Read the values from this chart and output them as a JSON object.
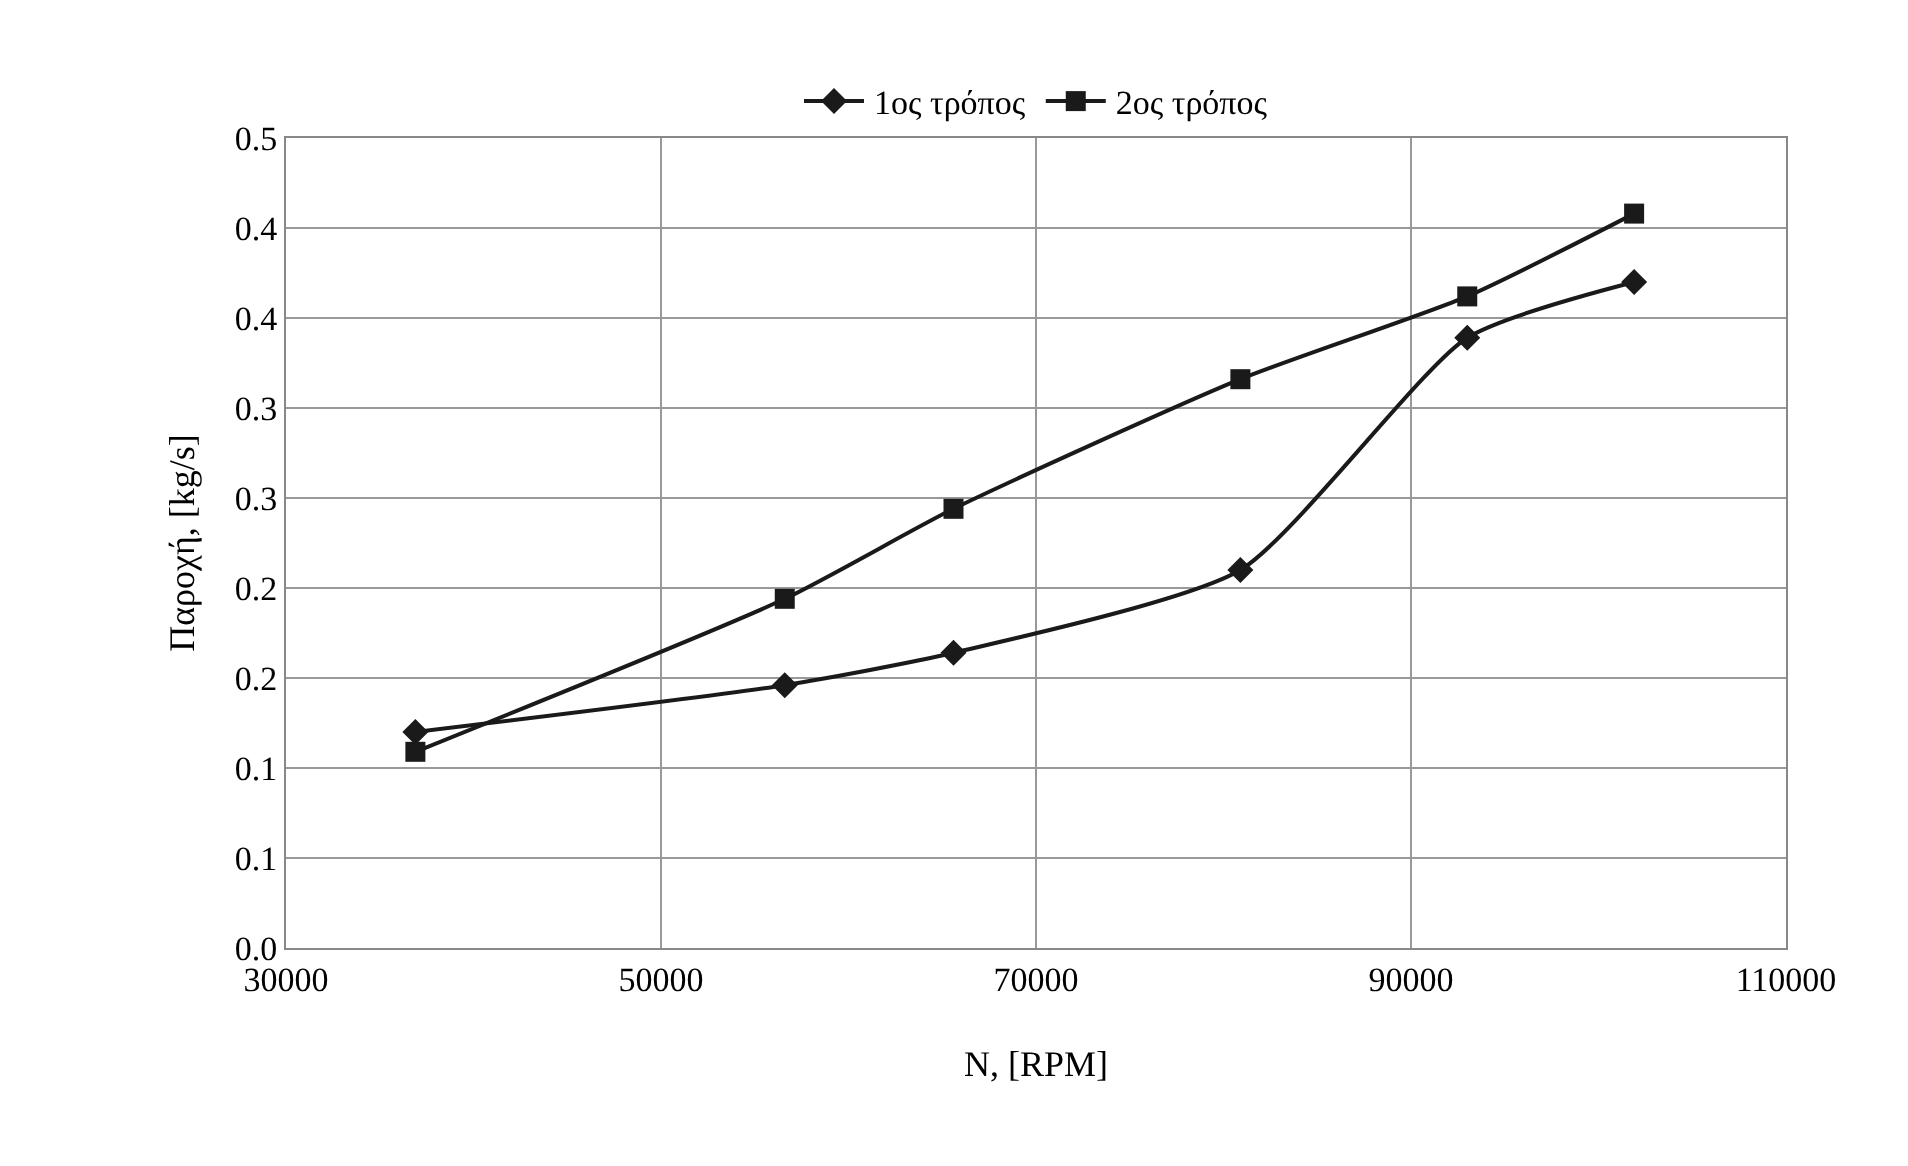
{
  "chart_data": {
    "type": "line",
    "xlabel": "N, [RPM]",
    "ylabel": "Παροχή, [kg/s]",
    "xlim": [
      30000,
      110000
    ],
    "xticks": [
      30000,
      50000,
      70000,
      90000,
      110000
    ],
    "ylim": [
      0,
      0.45
    ],
    "yticks": [
      {
        "value": 0,
        "label": "0.0"
      },
      {
        "value": 0.05,
        "label": "0.1"
      },
      {
        "value": 0.1,
        "label": "0.1"
      },
      {
        "value": 0.15,
        "label": "0.2"
      },
      {
        "value": 0.2,
        "label": "0.2"
      },
      {
        "value": 0.25,
        "label": "0.3"
      },
      {
        "value": 0.3,
        "label": "0.3"
      },
      {
        "value": 0.35,
        "label": "0.4"
      },
      {
        "value": 0.4,
        "label": "0.4"
      },
      {
        "value": 0.45,
        "label": "0.5"
      }
    ],
    "grid": true,
    "legend": "top",
    "line_style": "solid",
    "series": [
      {
        "name": "1ος τρόπος",
        "color": "#1a1a1a",
        "marker": "diamond",
        "x": [
          36900,
          56600,
          65600,
          80900,
          93000,
          101900
        ],
        "values": [
          0.12,
          0.146,
          0.164,
          0.21,
          0.339,
          0.37
        ]
      },
      {
        "name": "2ος τρόπος",
        "color": "#1a1a1a",
        "marker": "square",
        "x": [
          36900,
          56600,
          65600,
          80900,
          93000,
          101900
        ],
        "values": [
          0.109,
          0.194,
          0.244,
          0.316,
          0.362,
          0.408
        ]
      }
    ]
  }
}
